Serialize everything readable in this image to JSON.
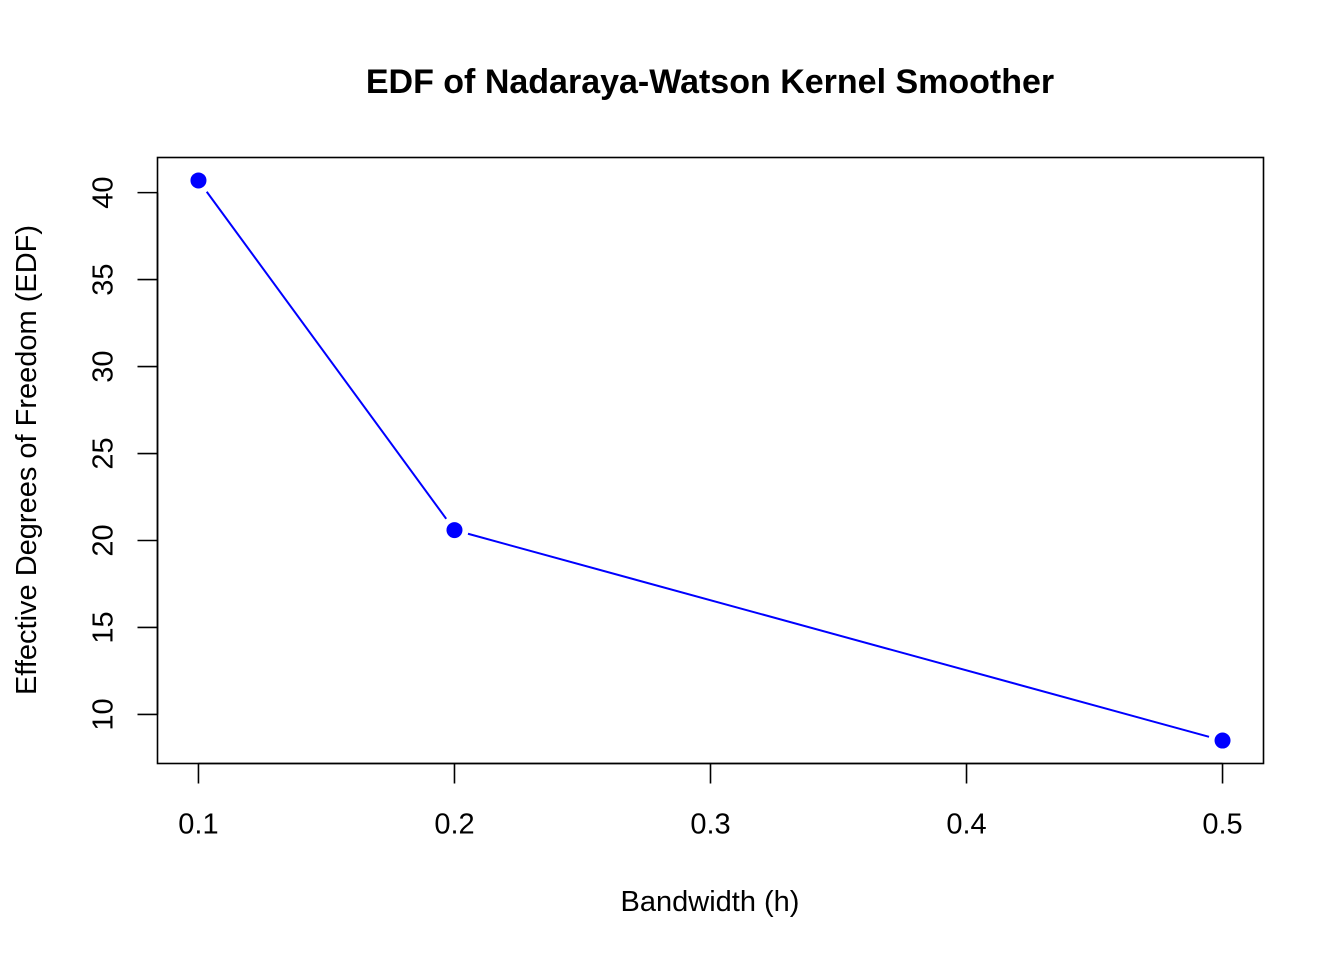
{
  "chart_data": {
    "type": "line",
    "title": "EDF of Nadaraya-Watson Kernel Smoother",
    "xlabel": "Bandwidth (h)",
    "ylabel": "Effective Degrees of Freedom (EDF)",
    "x": [
      0.1,
      0.2,
      0.5
    ],
    "series": [
      {
        "values": [
          40.7,
          20.6,
          8.5
        ],
        "color": "#0000ff",
        "line_type": "b",
        "marker": "filled-circle"
      }
    ],
    "xlim": [
      0.084,
      0.516
    ],
    "ylim": [
      7.18,
      42.02
    ],
    "x_ticks": [
      0.1,
      0.2,
      0.3,
      0.4,
      0.5
    ],
    "x_tick_labels": [
      "0.1",
      "0.2",
      "0.3",
      "0.4",
      "0.5"
    ],
    "y_ticks": [
      10,
      15,
      20,
      25,
      30,
      35,
      40
    ],
    "y_tick_labels": [
      "10",
      "15",
      "20",
      "25",
      "30",
      "35",
      "40"
    ],
    "grid": false,
    "legend": "none"
  }
}
